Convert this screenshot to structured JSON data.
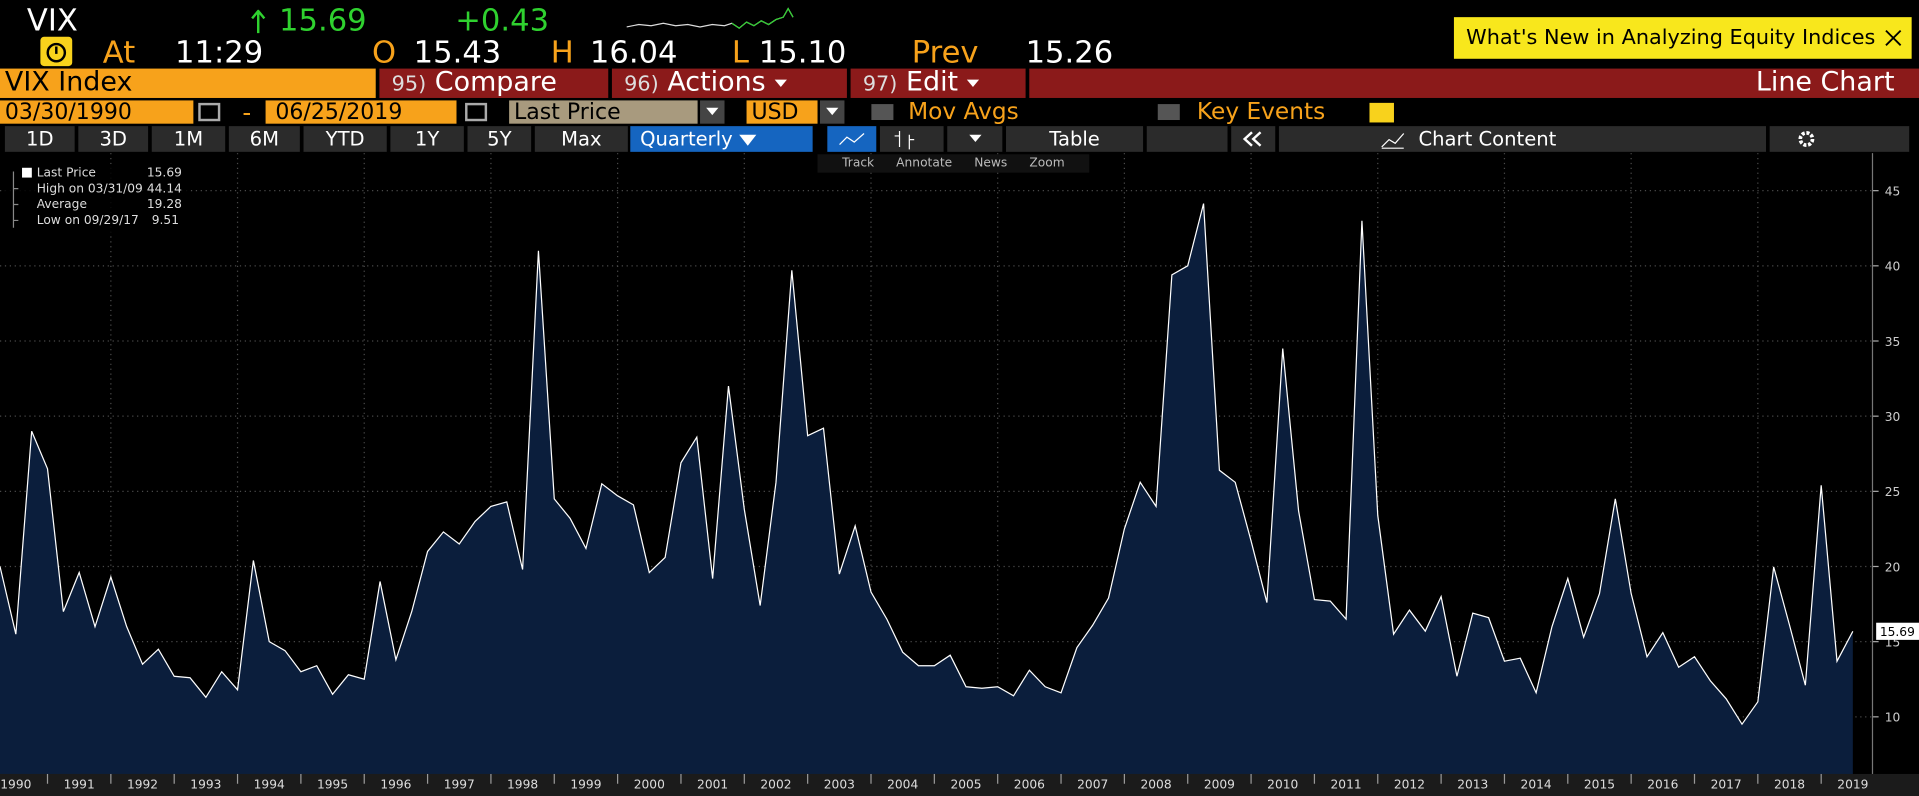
{
  "header": {
    "ticker": "VIX",
    "last": "15.69",
    "change": "+0.43",
    "at_label": "At",
    "time": "11:29",
    "open_label": "O",
    "open": "15.43",
    "high_label": "H",
    "high": "16.04",
    "low_label": "L",
    "low": "15.10",
    "prev_label": "Prev",
    "prev": "15.26",
    "news_banner": "What's New in Analyzing Equity Indices"
  },
  "menu": {
    "security": "VIX Index",
    "compare_num": "95)",
    "compare": "Compare",
    "actions_num": "96)",
    "actions": "Actions",
    "edit_num": "97)",
    "edit": "Edit",
    "chart_type": "Line Chart"
  },
  "controls": {
    "start_date": "03/30/1990",
    "dash": "-",
    "end_date": "06/25/2019",
    "field": "Last Price",
    "currency": "USD",
    "mov_avgs": "Mov Avgs",
    "key_events": "Key Events"
  },
  "toolbar": {
    "ranges": [
      "1D",
      "3D",
      "1M",
      "6M",
      "YTD",
      "1Y",
      "5Y",
      "Max"
    ],
    "frequency": "Quarterly",
    "table": "Table",
    "chart_content": "Chart Content"
  },
  "chart_tools": [
    "Track",
    "Annotate",
    "News",
    "Zoom"
  ],
  "legend": {
    "high_label": "High on 03/31/09",
    "average_label": "Average",
    "average": "19.28",
    "low_label": "Low on 09/29/17"
  },
  "chart_data": {
    "type": "area",
    "x": [
      1990.25,
      1990.5,
      1990.75,
      1991,
      1991.25,
      1991.5,
      1991.75,
      1992,
      1992.25,
      1992.5,
      1992.75,
      1993,
      1993.25,
      1993.5,
      1993.75,
      1994,
      1994.25,
      1994.5,
      1994.75,
      1995,
      1995.25,
      1995.5,
      1995.75,
      1996,
      1996.25,
      1996.5,
      1996.75,
      1997,
      1997.25,
      1997.5,
      1997.75,
      1998,
      1998.25,
      1998.5,
      1998.75,
      1999,
      1999.25,
      1999.5,
      1999.75,
      2000,
      2000.25,
      2000.5,
      2000.75,
      2001,
      2001.25,
      2001.5,
      2001.75,
      2002,
      2002.25,
      2002.5,
      2002.75,
      2003,
      2003.25,
      2003.5,
      2003.75,
      2004,
      2004.25,
      2004.5,
      2004.75,
      2005,
      2005.25,
      2005.5,
      2005.75,
      2006,
      2006.25,
      2006.5,
      2006.75,
      2007,
      2007.25,
      2007.5,
      2007.75,
      2008,
      2008.25,
      2008.5,
      2008.75,
      2009,
      2009.25,
      2009.5,
      2009.75,
      2010,
      2010.25,
      2010.5,
      2010.75,
      2011,
      2011.25,
      2011.5,
      2011.75,
      2012,
      2012.25,
      2012.5,
      2012.75,
      2013,
      2013.25,
      2013.5,
      2013.75,
      2014,
      2014.25,
      2014.5,
      2014.75,
      2015,
      2015.25,
      2015.5,
      2015.75,
      2016,
      2016.25,
      2016.5,
      2016.75,
      2017,
      2017.25,
      2017.5,
      2017.75,
      2018,
      2018.25,
      2018.5,
      2018.75,
      2019,
      2019.25,
      2019.5
    ],
    "series": [
      {
        "name": "Last Price",
        "color": "#ffffff",
        "fill": "#0b1e3c",
        "values": [
          20,
          15.5,
          29,
          26.5,
          17,
          19.6,
          16,
          19.3,
          16,
          13.5,
          14.5,
          12.7,
          12.6,
          11.3,
          13,
          11.8,
          20.4,
          15,
          14.4,
          13,
          13.4,
          11.5,
          12.8,
          12.5,
          19,
          13.8,
          17,
          21,
          22.3,
          21.5,
          23,
          24,
          24.3,
          19.8,
          41,
          24.5,
          23.2,
          21.2,
          25.5,
          24.7,
          24.1,
          19.6,
          20.6,
          26.9,
          28.6,
          19.2,
          32,
          23.8,
          17.4,
          25.6,
          39.7,
          28.7,
          29.2,
          19.5,
          22.7,
          18.3,
          16.5,
          14.3,
          13.4,
          13.4,
          14.1,
          12,
          11.9,
          12,
          11.4,
          13.1,
          12,
          11.6,
          14.6,
          16.1,
          17.9,
          22.5,
          25.6,
          24,
          39.4,
          40,
          44.14,
          26.4,
          25.6,
          21.7,
          17.6,
          34.5,
          23.7,
          17.8,
          17.7,
          16.5,
          43,
          23.4,
          15.5,
          17.1,
          15.7,
          18,
          12.7,
          16.9,
          16.6,
          13.7,
          13.9,
          11.6,
          16,
          19.2,
          15.3,
          18.2,
          24.5,
          18.2,
          14,
          15.6,
          13.3,
          14,
          12.4,
          11.2,
          9.51,
          11,
          19.97,
          16.1,
          12.1,
          25.4,
          13.7,
          15.69
        ]
      }
    ],
    "xlim": [
      1990.25,
      2019.81
    ],
    "xticks": [
      1990,
      1991,
      1992,
      1993,
      1994,
      1995,
      1996,
      1997,
      1998,
      1999,
      2000,
      2001,
      2002,
      2003,
      2004,
      2005,
      2006,
      2007,
      2008,
      2009,
      2010,
      2011,
      2012,
      2013,
      2014,
      2015,
      2016,
      2017,
      2018,
      2019
    ],
    "ylim": [
      6.2,
      47.5
    ],
    "yticks": [
      10,
      15,
      20,
      25,
      30,
      35,
      40,
      45
    ],
    "grid": true
  }
}
